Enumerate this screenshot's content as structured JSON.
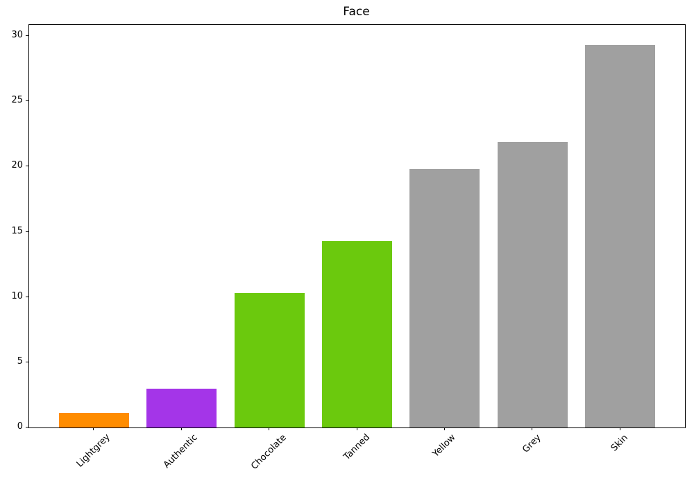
{
  "chart_data": {
    "type": "bar",
    "title": "Face",
    "categories": [
      "Lightgrey",
      "Authentic",
      "Chocolate",
      "Tanned",
      "Yellow",
      "Grey",
      "Skin"
    ],
    "values": [
      1.1,
      3.0,
      10.3,
      14.3,
      19.8,
      21.9,
      29.3
    ],
    "bar_colors": [
      "#FF8C00",
      "#A435E8",
      "#6BC90D",
      "#6BC90D",
      "#A0A0A0",
      "#A0A0A0",
      "#A0A0A0"
    ],
    "xlabel": "",
    "ylabel": "",
    "yticks": [
      0,
      5,
      10,
      15,
      20,
      25,
      30
    ],
    "ylim": [
      0,
      30.85
    ],
    "xtick_rotation": 45,
    "grid": false,
    "legend": false,
    "background_color": "#FFFFFF",
    "axis_color": "#000000",
    "bar_width_fraction": 0.8
  }
}
